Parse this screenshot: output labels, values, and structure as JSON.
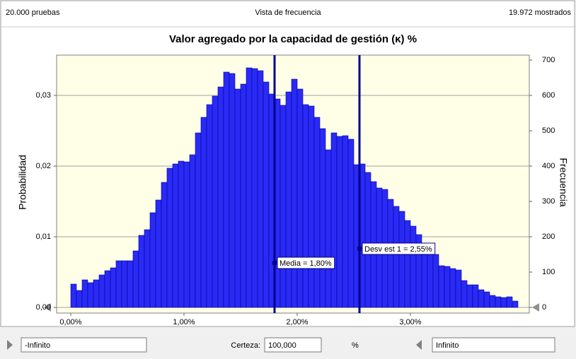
{
  "header": {
    "left": "20.000 pruebas",
    "center": "Vista de frecuencia",
    "right": "19.972 mostrados"
  },
  "chart_data": {
    "type": "histogram",
    "title": "Valor agregado por la capacidad de gestión (κ) %",
    "y_label": "Probabilidad",
    "y2_label": "Frecuencia",
    "bins": [
      0,
      0.05,
      0.1,
      0.15,
      0.2,
      0.25,
      0.3,
      0.35,
      0.4,
      0.45,
      0.5,
      0.55,
      0.6,
      0.65,
      0.7,
      0.75,
      0.8,
      0.85,
      0.9,
      0.95,
      1,
      1.05,
      1.1,
      1.15,
      1.2,
      1.25,
      1.3,
      1.35,
      1.4,
      1.45,
      1.5,
      1.55,
      1.6,
      1.65,
      1.7,
      1.75,
      1.8,
      1.85,
      1.9,
      1.95,
      2,
      2.05,
      2.1,
      2.15,
      2.2,
      2.25,
      2.3,
      2.35,
      2.4,
      2.45,
      2.5,
      2.55,
      2.6,
      2.65,
      2.7,
      2.75,
      2.8,
      2.85,
      2.9,
      2.95,
      3,
      3.05,
      3.1,
      3.15,
      3.2,
      3.25,
      3.3,
      3.35,
      3.4,
      3.45,
      3.5,
      3.55,
      3.6,
      3.65,
      3.7,
      3.75,
      3.8,
      3.85,
      3.9,
      3.95
    ],
    "values": [
      66,
      48,
      78,
      70,
      78,
      92,
      104,
      112,
      132,
      132,
      132,
      160,
      204,
      220,
      268,
      304,
      354,
      394,
      406,
      414,
      412,
      432,
      494,
      538,
      574,
      598,
      624,
      666,
      662,
      618,
      632,
      678,
      676,
      670,
      638,
      604,
      590,
      572,
      610,
      646,
      618,
      574,
      570,
      538,
      506,
      446,
      494,
      484,
      486,
      476,
      404,
      406,
      382,
      356,
      338,
      334,
      306,
      286,
      272,
      246,
      230,
      206,
      178,
      176,
      150,
      118,
      116,
      110,
      106,
      76,
      64,
      64,
      50,
      44,
      34,
      30,
      28,
      30,
      18
    ],
    "axis": "y2",
    "color": "#2a2af5",
    "xlim": [
      -0.125,
      4.05
    ],
    "xticks": [
      {
        "value": 0,
        "label": "0,00%"
      },
      {
        "value": 1,
        "label": "1,00%"
      },
      {
        "value": 2,
        "label": "2,00%"
      },
      {
        "value": 3,
        "label": "3,00%"
      }
    ],
    "ylim": [
      -0.0008,
      0.0357
    ],
    "yticks": [
      {
        "value": 0,
        "label": "0,00"
      },
      {
        "value": 0.01,
        "label": "0,01"
      },
      {
        "value": 0.02,
        "label": "0,02"
      },
      {
        "value": 0.03,
        "label": "0,03"
      }
    ],
    "y2lim": [
      -16,
      714
    ],
    "y2ticks": [
      0,
      100,
      200,
      300,
      400,
      500,
      600,
      700
    ],
    "grid": true,
    "markers": [
      {
        "value": 1.8,
        "label": "Media = 1,80%"
      },
      {
        "value": 2.55,
        "label": "Desv est 1 = 2,55%"
      }
    ],
    "marker_color": "#00008b"
  },
  "footer": {
    "left": "-Infinito",
    "certainty_label": "Certeza:",
    "certainty": "100,000",
    "unit": "%",
    "right": "Infinito"
  }
}
